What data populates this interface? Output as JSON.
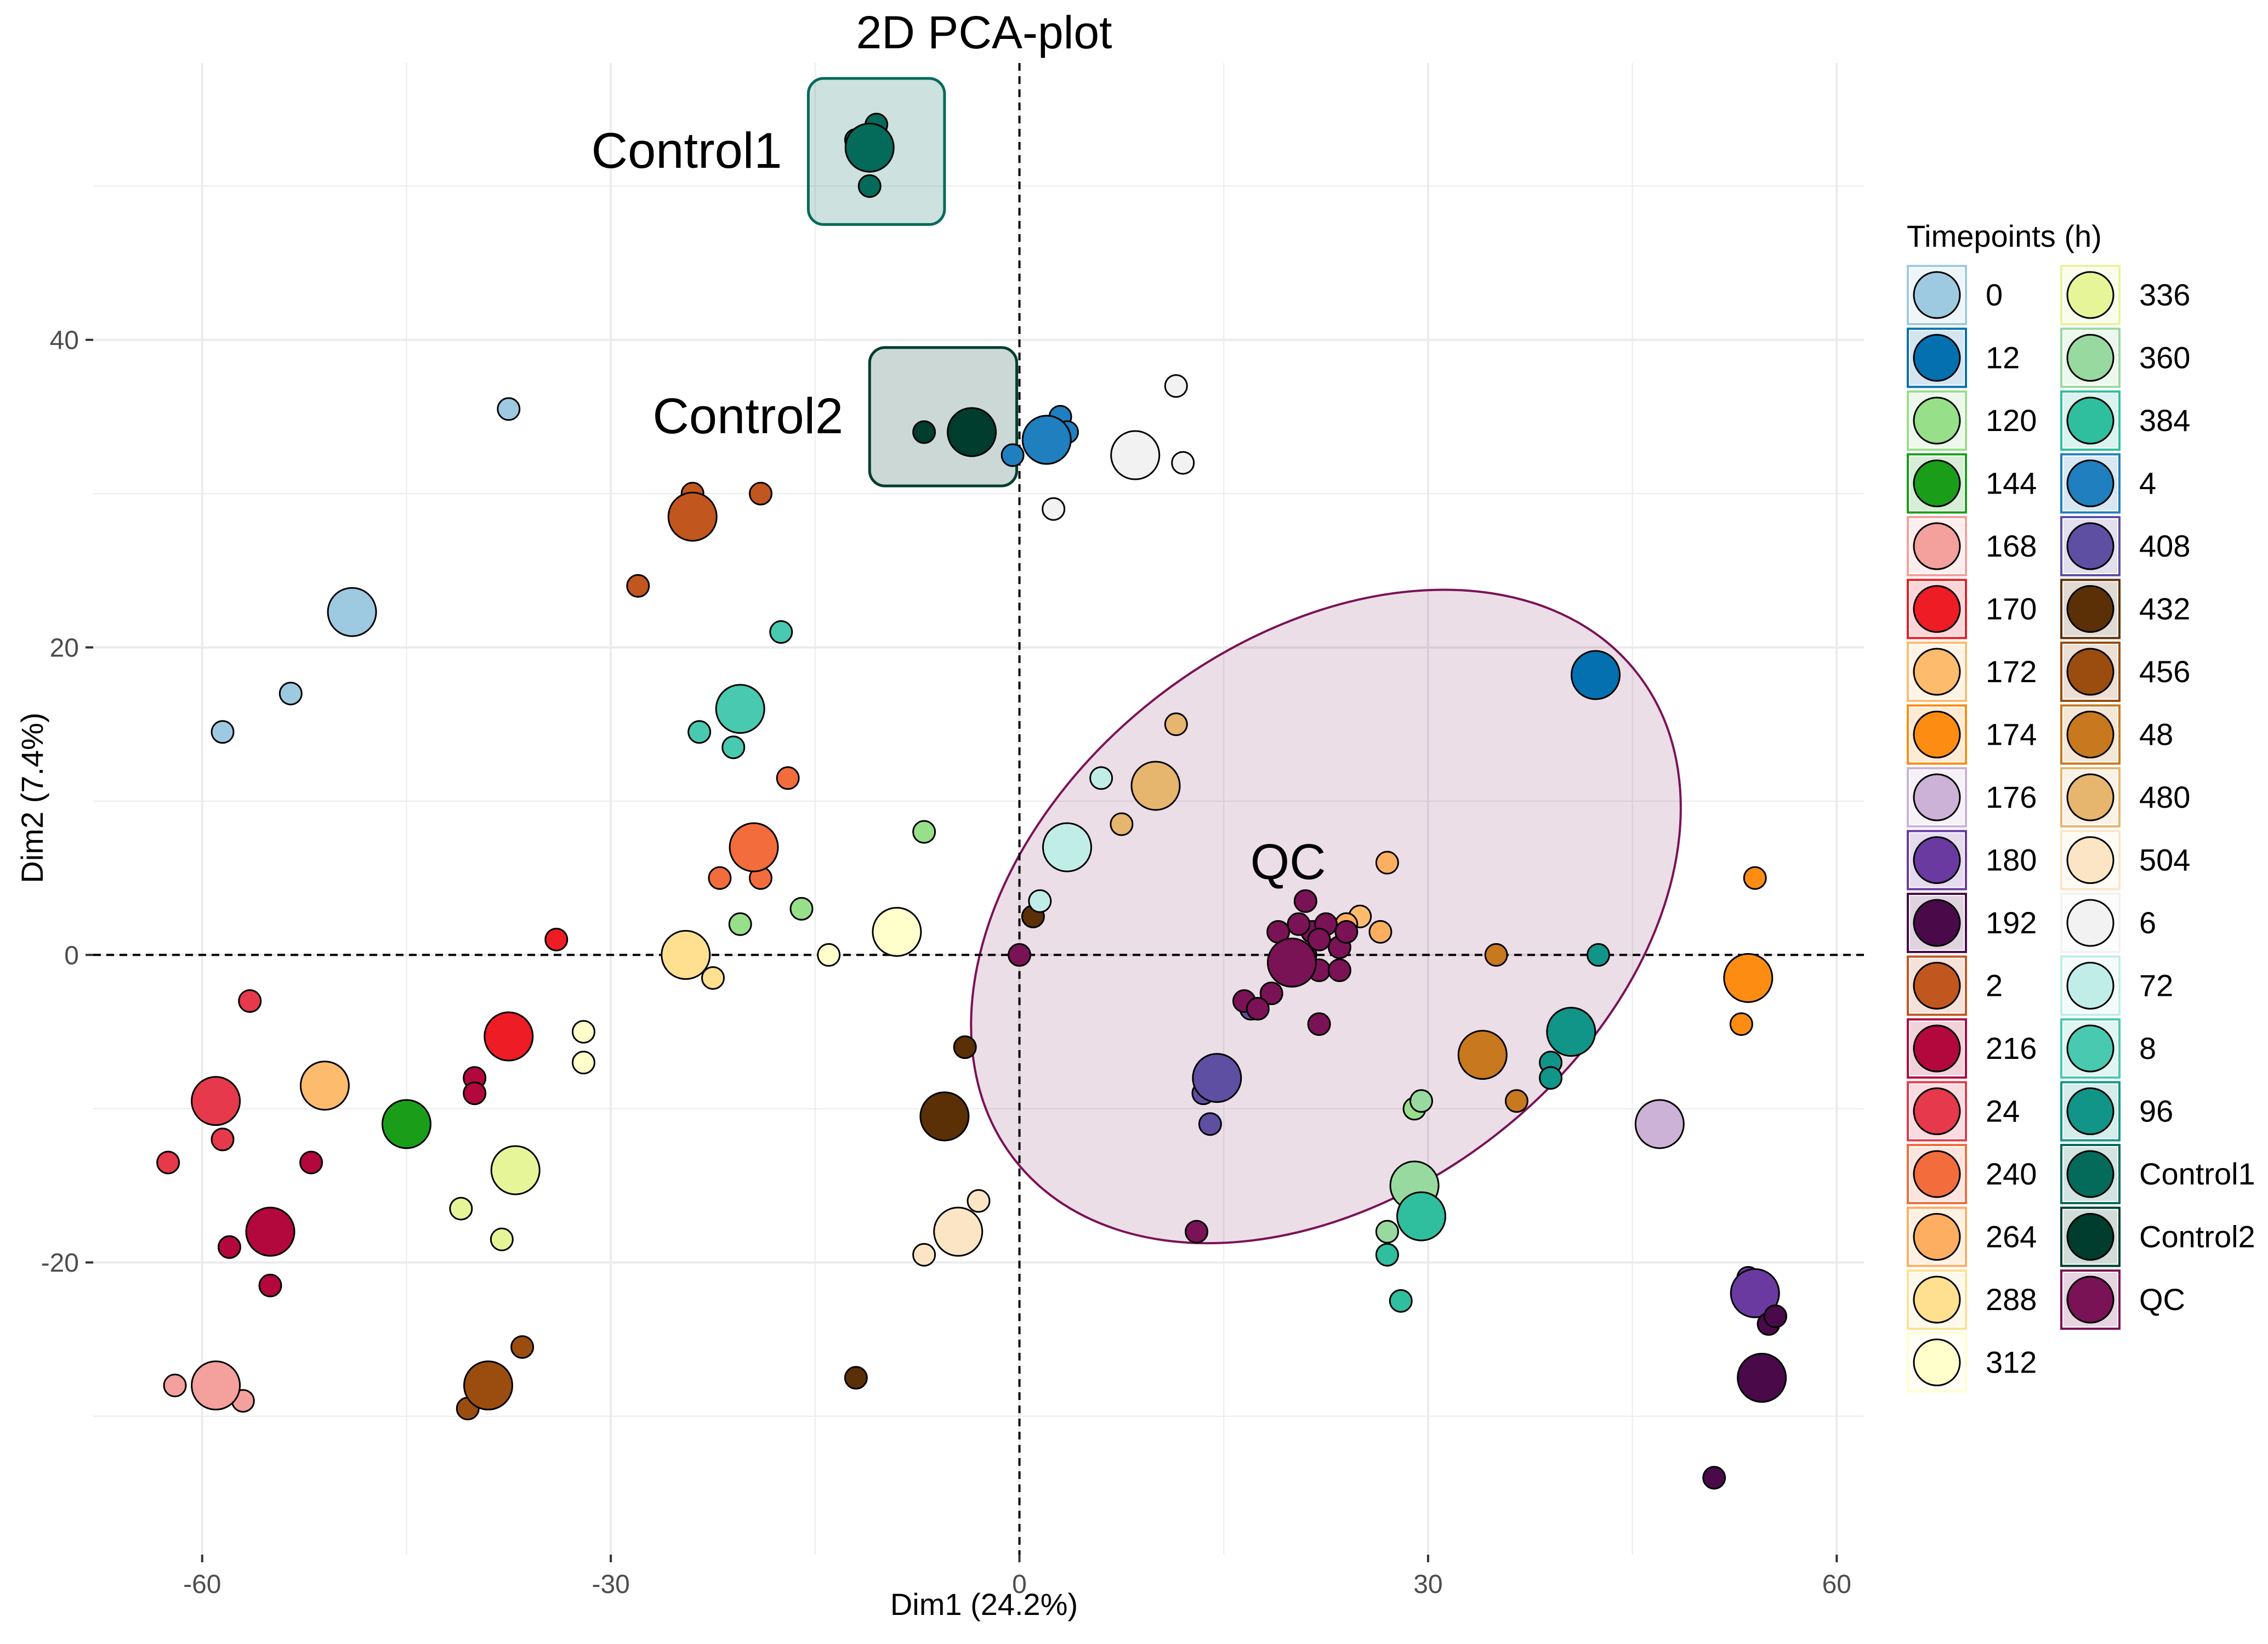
{
  "chart_data": {
    "type": "scatter",
    "title": "2D PCA-plot",
    "xlabel": "Dim1 (24.2%)",
    "ylabel": "Dim2 (7.4%)",
    "xlim": [
      -68,
      62
    ],
    "ylim": [
      -39,
      58
    ],
    "xticks": [
      -60,
      -30,
      0,
      30,
      60
    ],
    "yticks": [
      -20,
      0,
      20,
      40
    ],
    "xtick_labels": [
      "-60",
      "-30",
      "0",
      "30",
      "60"
    ],
    "ytick_labels": [
      "-20",
      "0",
      "20",
      "40"
    ],
    "grid": true,
    "reference_lines": {
      "x": 0,
      "y": 0,
      "style": "dashed"
    },
    "legend": {
      "title": "Timepoints (h)",
      "placement": "right"
    },
    "groups": [
      {
        "name": "0",
        "color": "#9ecae1",
        "points": [
          [
            -58.5,
            14.5,
            1
          ],
          [
            -53.5,
            17,
            1
          ],
          [
            -37.5,
            35.5,
            1
          ],
          [
            -49,
            22.3,
            2
          ]
        ]
      },
      {
        "name": "12",
        "color": "#0570b0",
        "points": [
          [
            42,
            18,
            1
          ],
          [
            42.3,
            18.2,
            2
          ]
        ]
      },
      {
        "name": "120",
        "color": "#98df8a",
        "points": [
          [
            -20.5,
            2,
            1
          ],
          [
            -16,
            3,
            1
          ],
          [
            -7,
            8,
            1
          ],
          [
            29,
            -10,
            1
          ]
        ]
      },
      {
        "name": "144",
        "color": "#1a9e1a",
        "points": [
          [
            -45,
            -11,
            2
          ]
        ]
      },
      {
        "name": "168",
        "color": "#f4a09c",
        "points": [
          [
            -62,
            -28,
            1
          ],
          [
            -57,
            -29,
            1
          ],
          [
            -59,
            -28,
            2
          ]
        ]
      },
      {
        "name": "170",
        "color": "#ee1c24",
        "points": [
          [
            -34,
            1,
            1
          ],
          [
            -37.5,
            -5.3,
            2
          ]
        ]
      },
      {
        "name": "172",
        "color": "#fdbb6e",
        "points": [
          [
            -51,
            -8.5,
            2
          ],
          [
            25,
            2.5,
            1
          ]
        ]
      },
      {
        "name": "174",
        "color": "#fd8c12",
        "points": [
          [
            53.5,
            -1.5,
            2
          ],
          [
            53,
            -4.5,
            1
          ],
          [
            54,
            5,
            1
          ]
        ]
      },
      {
        "name": "176",
        "color": "#cbb2d6",
        "points": [
          [
            47,
            -11,
            2
          ]
        ]
      },
      {
        "name": "180",
        "color": "#6a3aa0",
        "points": [
          [
            53.5,
            -21,
            1
          ],
          [
            54,
            -22,
            2
          ]
        ]
      },
      {
        "name": "192",
        "color": "#4a0a4a",
        "points": [
          [
            51,
            -34,
            1
          ],
          [
            55,
            -24,
            1
          ],
          [
            55.5,
            -23.5,
            1
          ],
          [
            54.5,
            -27.5,
            2
          ]
        ]
      },
      {
        "name": "2",
        "color": "#c1561f",
        "points": [
          [
            -24,
            30,
            1
          ],
          [
            -24,
            28.5,
            2
          ],
          [
            -19,
            30,
            1
          ],
          [
            -28,
            24,
            1
          ]
        ]
      },
      {
        "name": "216",
        "color": "#b2083e",
        "points": [
          [
            -58,
            -19,
            1
          ],
          [
            -55,
            -21.5,
            1
          ],
          [
            -55,
            -18,
            2
          ],
          [
            -52,
            -13.5,
            1
          ],
          [
            -40,
            -8,
            1
          ],
          [
            -40,
            -9,
            1
          ]
        ]
      },
      {
        "name": "24",
        "color": "#e6394b",
        "points": [
          [
            -59,
            -9.5,
            2
          ],
          [
            -62.5,
            -13.5,
            1
          ],
          [
            -58.5,
            -12,
            1
          ],
          [
            -56.5,
            -3,
            1
          ]
        ]
      },
      {
        "name": "240",
        "color": "#f36c3c",
        "points": [
          [
            -22,
            5,
            1
          ],
          [
            -19.5,
            7,
            2
          ],
          [
            -19,
            5,
            1
          ],
          [
            -17,
            11.5,
            1
          ]
        ]
      },
      {
        "name": "264",
        "color": "#fdae61",
        "points": [
          [
            24,
            2,
            1
          ],
          [
            27,
            6,
            1
          ],
          [
            26.5,
            1.5,
            1
          ]
        ]
      },
      {
        "name": "288",
        "color": "#fee090",
        "points": [
          [
            -24.5,
            0,
            2
          ],
          [
            -22.5,
            -1.5,
            1
          ],
          [
            -39,
            -28,
            1
          ]
        ]
      },
      {
        "name": "312",
        "color": "#ffffcc",
        "points": [
          [
            -32,
            -5,
            1
          ],
          [
            -32,
            -7,
            1
          ],
          [
            -9,
            1.5,
            2
          ],
          [
            -14,
            0,
            1
          ]
        ]
      },
      {
        "name": "336",
        "color": "#e6f598",
        "points": [
          [
            -37,
            -14,
            2
          ],
          [
            -38,
            -18.5,
            1
          ],
          [
            -41,
            -16.5,
            1
          ]
        ]
      },
      {
        "name": "360",
        "color": "#98d9a0",
        "points": [
          [
            29,
            -15,
            2
          ],
          [
            29.5,
            -9.5,
            1
          ],
          [
            27,
            -18,
            1
          ]
        ]
      },
      {
        "name": "384",
        "color": "#2fbf9e",
        "points": [
          [
            29.5,
            -17,
            2
          ],
          [
            27,
            -19.5,
            1
          ],
          [
            28,
            -22.5,
            1
          ]
        ]
      },
      {
        "name": "4",
        "color": "#1f7fbf",
        "points": [
          [
            2,
            33.5,
            2
          ],
          [
            3,
            35,
            1
          ],
          [
            3.5,
            34,
            1
          ],
          [
            -0.5,
            32.5,
            1
          ]
        ]
      },
      {
        "name": "408",
        "color": "#5e4fa2",
        "points": [
          [
            14.5,
            -8,
            2
          ],
          [
            13.5,
            -9,
            1
          ],
          [
            14,
            -11,
            1
          ],
          [
            17,
            -3.5,
            1
          ]
        ]
      },
      {
        "name": "432",
        "color": "#5b3007",
        "points": [
          [
            -5.5,
            -10.5,
            2
          ],
          [
            -4,
            -6,
            1
          ],
          [
            1,
            2.5,
            1
          ],
          [
            -12,
            -27.5,
            1
          ]
        ]
      },
      {
        "name": "456",
        "color": "#9a4d0e",
        "points": [
          [
            -39,
            -28,
            2
          ],
          [
            -36.5,
            -25.5,
            1
          ],
          [
            -40.5,
            -29.5,
            1
          ]
        ]
      },
      {
        "name": "48",
        "color": "#c8781e",
        "points": [
          [
            34,
            -6.5,
            2
          ],
          [
            36.5,
            -9.5,
            1
          ],
          [
            35,
            0,
            1
          ]
        ]
      },
      {
        "name": "480",
        "color": "#e6b56e",
        "points": [
          [
            10,
            11,
            2
          ],
          [
            11.5,
            15,
            1
          ],
          [
            7.5,
            8.5,
            1
          ]
        ]
      },
      {
        "name": "504",
        "color": "#fbe5c4",
        "points": [
          [
            -4.5,
            -18,
            2
          ],
          [
            -7,
            -19.5,
            1
          ],
          [
            -3,
            -16,
            1
          ]
        ]
      },
      {
        "name": "6",
        "color": "#f2f2f2",
        "points": [
          [
            8.5,
            32.5,
            2
          ],
          [
            12,
            32,
            1
          ],
          [
            11.5,
            37,
            1
          ],
          [
            2.5,
            29,
            1
          ]
        ]
      },
      {
        "name": "72",
        "color": "#c1ede8",
        "points": [
          [
            3.5,
            7,
            2
          ],
          [
            1.5,
            3.5,
            1
          ],
          [
            6,
            11.5,
            1
          ]
        ]
      },
      {
        "name": "8",
        "color": "#48c9b0",
        "points": [
          [
            -20.5,
            16,
            2
          ],
          [
            -23.5,
            14.5,
            1
          ],
          [
            -21,
            13.5,
            1
          ],
          [
            -17.5,
            21,
            1
          ]
        ]
      },
      {
        "name": "96",
        "color": "#119589",
        "points": [
          [
            40.5,
            -5,
            2
          ],
          [
            39,
            -7,
            1
          ],
          [
            39,
            -8,
            1
          ],
          [
            42.5,
            0,
            1
          ]
        ]
      },
      {
        "name": "Control1",
        "color": "#046a5a",
        "points": [
          [
            -11,
            52.5,
            2
          ],
          [
            -10.5,
            54,
            1
          ],
          [
            -11,
            50,
            1
          ],
          [
            -12,
            53,
            1
          ]
        ]
      },
      {
        "name": "Control2",
        "color": "#003d2e",
        "points": [
          [
            -3.5,
            34,
            2
          ],
          [
            -7,
            34,
            1
          ],
          [
            -4,
            34.5,
            1
          ]
        ]
      },
      {
        "name": "QC",
        "color": "#7a1256",
        "points": [
          [
            0,
            0,
            1
          ],
          [
            20,
            -0.5,
            2
          ],
          [
            21.5,
            1.5,
            1
          ],
          [
            22.5,
            2,
            1
          ],
          [
            21,
            3.5,
            1
          ],
          [
            23.5,
            0.5,
            1
          ],
          [
            22,
            -1,
            1
          ],
          [
            19,
            1.5,
            1
          ],
          [
            20.5,
            2,
            1
          ],
          [
            21,
            0,
            1
          ],
          [
            22,
            1,
            1
          ],
          [
            23.5,
            -1,
            1
          ],
          [
            24,
            1.5,
            1
          ],
          [
            18.5,
            -2.5,
            1
          ],
          [
            16.5,
            -3,
            1
          ],
          [
            17.5,
            -3.5,
            1
          ],
          [
            22,
            -4.5,
            1
          ],
          [
            13,
            -18,
            1
          ]
        ]
      }
    ],
    "highlight_boxes": [
      {
        "label": "Control1",
        "group": "Control1",
        "x": [
          -15.5,
          -5.5
        ],
        "y": [
          47.5,
          57
        ]
      },
      {
        "label": "Control2",
        "group": "Control2",
        "x": [
          -11,
          -0.2
        ],
        "y": [
          30.5,
          39.5
        ]
      }
    ],
    "ellipse": {
      "label": "QC",
      "group": "QC",
      "cx": 22.5,
      "cy": 2.5,
      "rx": 29,
      "ry": 18,
      "rotation_deg": 38
    }
  },
  "colors": {
    "background": "#ffffff",
    "grid": "#ebebeb",
    "point_outline": "#000000"
  }
}
